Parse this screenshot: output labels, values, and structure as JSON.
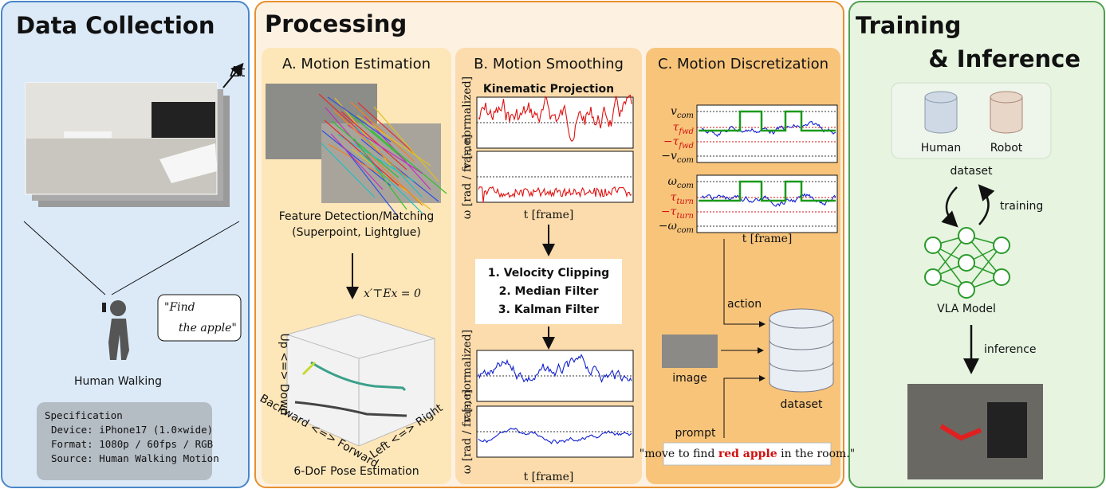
{
  "data_collection": {
    "title": "Data Collection",
    "delta": "Δt",
    "quote": [
      "\"Find",
      "the apple\""
    ],
    "caption": "Human Walking",
    "spec": {
      "heading": "Specification",
      "lines": [
        "Device: iPhone17 (1.0×wide)",
        "Format: 1080p / 60fps / RGB",
        "Source: Human Walking Motion"
      ]
    }
  },
  "processing": {
    "title": "Processing",
    "estimation": {
      "title": "A. Motion Estimation",
      "matching": [
        "Feature Detection/Matching",
        "(Superpoint, Lightglue)"
      ],
      "equation": "x′⊤Ex = 0",
      "axes": [
        "Up <=> Down",
        "Backward <=> Forward",
        "Left <=> Right"
      ],
      "caption": "6-DoF Pose Estimation"
    },
    "smoothing": {
      "title": "B. Motion Smoothing",
      "plot_title": "Kinematic Projection",
      "ylabels": [
        "v [-, normalized]",
        "ω [rad / frame]"
      ],
      "xlabel": "t [frame]",
      "steps": [
        "1. Velocity Clipping",
        "2. Median Filter",
        "3. Kalman Filter"
      ]
    },
    "discretization": {
      "title": "C. Motion Discretization",
      "v_labels": [
        {
          "base": "v",
          "sub": "com"
        },
        {
          "base": "τ",
          "sub": "fwd"
        },
        {
          "base": "−τ",
          "sub": "fwd"
        },
        {
          "base": "−v",
          "sub": "com"
        }
      ],
      "w_labels": [
        {
          "base": "ω",
          "sub": "com"
        },
        {
          "base": "τ",
          "sub": "turn"
        },
        {
          "base": "−τ",
          "sub": "turn"
        },
        {
          "base": "−ω",
          "sub": "com"
        }
      ],
      "xlabel": "t [frame]",
      "action": "action",
      "image": "image",
      "prompt": "prompt",
      "dataset": "dataset",
      "prompt_text": [
        "\"move to find ",
        "red apple",
        " in the room.\""
      ]
    }
  },
  "training": {
    "title": [
      "Training",
      "& Inference"
    ],
    "sources": [
      "Human",
      "Robot"
    ],
    "dataset": "dataset",
    "training": "training",
    "model": "VLA Model",
    "inference": "inference"
  }
}
